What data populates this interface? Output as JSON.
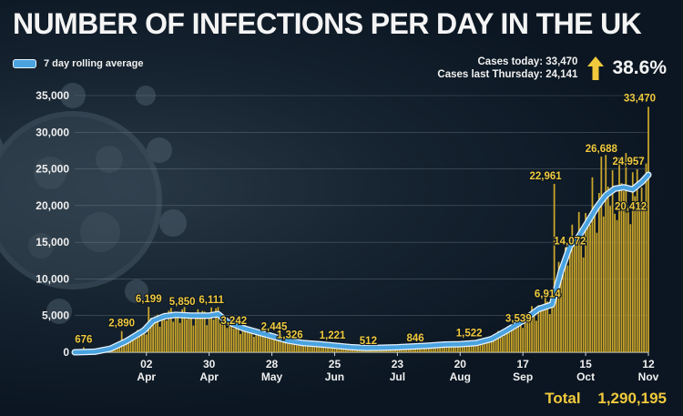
{
  "header": {
    "title": "NUMBER OF INFECTIONS PER DAY IN THE UK",
    "legend_label": "7 day rolling average",
    "cases_today": "Cases today: 33,470",
    "cases_last_thursday": "Cases last Thursday: 24,141",
    "change_pct": "38.6%"
  },
  "footer": {
    "total_label": "Total",
    "total_value": "1,290,195"
  },
  "colors": {
    "bars": "#c9a52a",
    "line": "#4aa3df",
    "labels": "#f0c93c",
    "arrow": "#f0c93c"
  },
  "chart_data": {
    "type": "bar",
    "title": "NUMBER OF INFECTIONS PER DAY IN THE UK",
    "ylim": [
      0,
      35000
    ],
    "y_ticks": [
      0,
      5000,
      10000,
      15000,
      20000,
      25000,
      30000,
      35000
    ],
    "y_tick_labels": [
      "0",
      "5,000",
      "10,000",
      "15,000",
      "20,000",
      "25,000",
      "30,000",
      "35,000"
    ],
    "grid": true,
    "x_range": [
      "2020-03-01",
      "2020-11-12"
    ],
    "x_ticks": [
      {
        "date": "2020-04-02",
        "day": "02",
        "month": "Apr"
      },
      {
        "date": "2020-04-30",
        "day": "30",
        "month": "Apr"
      },
      {
        "date": "2020-05-28",
        "day": "28",
        "month": "May"
      },
      {
        "date": "2020-06-25",
        "day": "25",
        "month": "Jun"
      },
      {
        "date": "2020-07-23",
        "day": "23",
        "month": "Jul"
      },
      {
        "date": "2020-08-20",
        "day": "20",
        "month": "Aug"
      },
      {
        "date": "2020-09-17",
        "day": "17",
        "month": "Sep"
      },
      {
        "date": "2020-10-15",
        "day": "15",
        "month": "Oct"
      },
      {
        "date": "2020-11-12",
        "day": "12",
        "month": "Nov"
      }
    ],
    "series": [
      {
        "name": "7 day rolling average",
        "kind": "line",
        "points": [
          [
            "2020-03-01",
            0
          ],
          [
            "2020-03-10",
            80
          ],
          [
            "2020-03-17",
            500
          ],
          [
            "2020-03-24",
            1500
          ],
          [
            "2020-04-01",
            3000
          ],
          [
            "2020-04-05",
            4300
          ],
          [
            "2020-04-10",
            4900
          ],
          [
            "2020-04-15",
            5100
          ],
          [
            "2020-04-22",
            5000
          ],
          [
            "2020-04-30",
            5000
          ],
          [
            "2020-05-04",
            5200
          ],
          [
            "2020-05-08",
            4200
          ],
          [
            "2020-05-15",
            3300
          ],
          [
            "2020-05-22",
            2700
          ],
          [
            "2020-05-28",
            2200
          ],
          [
            "2020-06-04",
            1600
          ],
          [
            "2020-06-11",
            1250
          ],
          [
            "2020-06-18",
            1100
          ],
          [
            "2020-06-25",
            900
          ],
          [
            "2020-07-02",
            700
          ],
          [
            "2020-07-09",
            600
          ],
          [
            "2020-07-16",
            620
          ],
          [
            "2020-07-23",
            680
          ],
          [
            "2020-07-30",
            800
          ],
          [
            "2020-08-06",
            900
          ],
          [
            "2020-08-13",
            1050
          ],
          [
            "2020-08-20",
            1100
          ],
          [
            "2020-08-27",
            1250
          ],
          [
            "2020-09-03",
            1800
          ],
          [
            "2020-09-10",
            3000
          ],
          [
            "2020-09-17",
            4300
          ],
          [
            "2020-09-24",
            5900
          ],
          [
            "2020-09-30",
            6500
          ],
          [
            "2020-10-04",
            11000
          ],
          [
            "2020-10-08",
            14500
          ],
          [
            "2020-10-12",
            15800
          ],
          [
            "2020-10-16",
            17800
          ],
          [
            "2020-10-20",
            19800
          ],
          [
            "2020-10-24",
            21400
          ],
          [
            "2020-10-28",
            22300
          ],
          [
            "2020-11-01",
            22500
          ],
          [
            "2020-11-05",
            22200
          ],
          [
            "2020-11-09",
            23200
          ],
          [
            "2020-11-12",
            24200
          ]
        ]
      }
    ],
    "annotations": [
      {
        "date": "2020-03-05",
        "value": 676,
        "label": "676"
      },
      {
        "date": "2020-03-22",
        "value": 2890,
        "label": "2,890"
      },
      {
        "date": "2020-04-03",
        "value": 6199,
        "label": "6,199"
      },
      {
        "date": "2020-04-18",
        "value": 5850,
        "label": "5,850"
      },
      {
        "date": "2020-05-01",
        "value": 6111,
        "label": "6,111"
      },
      {
        "date": "2020-05-11",
        "value": 3242,
        "label": "3,242"
      },
      {
        "date": "2020-05-29",
        "value": 2445,
        "label": "2,445"
      },
      {
        "date": "2020-06-05",
        "value": 1326,
        "label": "1,326"
      },
      {
        "date": "2020-06-24",
        "value": 1221,
        "label": "1,221"
      },
      {
        "date": "2020-07-10",
        "value": 512,
        "label": "512"
      },
      {
        "date": "2020-07-31",
        "value": 846,
        "label": "846"
      },
      {
        "date": "2020-08-24",
        "value": 1522,
        "label": "1,522"
      },
      {
        "date": "2020-09-15",
        "value": 3539,
        "label": "3,539"
      },
      {
        "date": "2020-09-28",
        "value": 6914,
        "label": "6,914"
      },
      {
        "date": "2020-10-01",
        "value": 22961,
        "label": "22,961"
      },
      {
        "date": "2020-10-08",
        "value": 14072,
        "label": "14,072"
      },
      {
        "date": "2020-10-22",
        "value": 26688,
        "label": "26,688"
      },
      {
        "date": "2020-11-07",
        "value": 24957,
        "label": "24,957"
      },
      {
        "date": "2020-11-08",
        "value": 20412,
        "label": "20,412"
      },
      {
        "date": "2020-11-12",
        "value": 33470,
        "label": "33,470"
      }
    ]
  }
}
